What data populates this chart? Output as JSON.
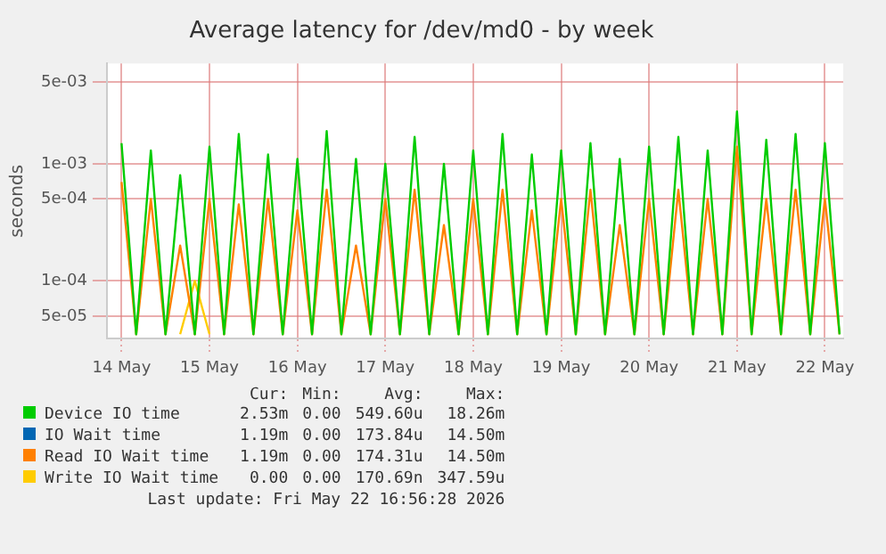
{
  "chart_data": {
    "type": "line",
    "title": "Average latency for /dev/md0 - by week",
    "ylabel": "seconds",
    "x": [
      "2026-05-14T00:00",
      "2026-05-14T04:00",
      "2026-05-14T08:00",
      "2026-05-14T12:00",
      "2026-05-14T16:00",
      "2026-05-14T20:00",
      "2026-05-15T00:00",
      "2026-05-15T04:00",
      "2026-05-15T08:00",
      "2026-05-15T12:00",
      "2026-05-15T16:00",
      "2026-05-15T20:00",
      "2026-05-16T00:00",
      "2026-05-16T04:00",
      "2026-05-16T08:00",
      "2026-05-16T12:00",
      "2026-05-16T16:00",
      "2026-05-16T20:00",
      "2026-05-17T00:00",
      "2026-05-17T04:00",
      "2026-05-17T08:00",
      "2026-05-17T12:00",
      "2026-05-17T16:00",
      "2026-05-17T20:00",
      "2026-05-18T00:00",
      "2026-05-18T04:00",
      "2026-05-18T08:00",
      "2026-05-18T12:00",
      "2026-05-18T16:00",
      "2026-05-18T20:00",
      "2026-05-19T00:00",
      "2026-05-19T04:00",
      "2026-05-19T08:00",
      "2026-05-19T12:00",
      "2026-05-19T16:00",
      "2026-05-19T20:00",
      "2026-05-20T00:00",
      "2026-05-20T04:00",
      "2026-05-20T08:00",
      "2026-05-20T12:00",
      "2026-05-20T16:00",
      "2026-05-20T20:00",
      "2026-05-21T00:00",
      "2026-05-21T04:00",
      "2026-05-21T08:00",
      "2026-05-21T12:00",
      "2026-05-21T16:00",
      "2026-05-21T20:00",
      "2026-05-22T00:00",
      "2026-05-22T04:00"
    ],
    "series": [
      {
        "name": "Device IO time",
        "color": "#00cc00",
        "values": [
          0.0015,
          3.5e-05,
          0.0013,
          3.5e-05,
          0.0008,
          3.5e-05,
          0.0014,
          3.5e-05,
          0.0018,
          3.5e-05,
          0.0012,
          3.5e-05,
          0.0011,
          3.5e-05,
          0.0019,
          3.5e-05,
          0.0011,
          3.5e-05,
          0.001,
          3.5e-05,
          0.0017,
          3.5e-05,
          0.001,
          3.5e-05,
          0.0013,
          3.5e-05,
          0.0018,
          3.5e-05,
          0.0012,
          3.5e-05,
          0.0013,
          3.5e-05,
          0.0015,
          3.5e-05,
          0.0011,
          3.5e-05,
          0.0014,
          3.5e-05,
          0.0017,
          3.5e-05,
          0.0013,
          3.5e-05,
          0.0028,
          3.5e-05,
          0.0016,
          3.5e-05,
          0.0018,
          3.5e-05,
          0.0015,
          3.5e-05
        ]
      },
      {
        "name": "IO Wait time",
        "color": "#0066b3",
        "values": [
          null,
          null,
          null,
          null,
          null,
          null,
          null,
          null,
          null,
          null,
          null,
          null,
          null,
          null,
          null,
          null,
          null,
          null,
          null,
          null,
          null,
          null,
          null,
          null,
          null,
          null,
          null,
          null,
          null,
          null,
          null,
          null,
          null,
          null,
          null,
          null,
          null,
          null,
          null,
          null,
          null,
          null,
          null,
          null,
          null,
          null,
          null,
          null,
          null,
          null
        ]
      },
      {
        "name": "Read IO Wait time",
        "color": "#ff8000",
        "values": [
          0.0007,
          3.5e-05,
          0.0005,
          3.5e-05,
          0.0002,
          3.5e-05,
          0.0005,
          3.5e-05,
          0.00045,
          3.5e-05,
          0.0005,
          3.5e-05,
          0.0004,
          3.5e-05,
          0.0006,
          3.5e-05,
          0.0002,
          3.5e-05,
          0.0005,
          3.5e-05,
          0.0006,
          3.5e-05,
          0.0003,
          3.5e-05,
          0.0005,
          3.5e-05,
          0.0006,
          3.5e-05,
          0.0004,
          3.5e-05,
          0.0005,
          3.5e-05,
          0.0006,
          3.5e-05,
          0.0003,
          3.5e-05,
          0.0005,
          3.5e-05,
          0.0006,
          3.5e-05,
          0.0005,
          3.5e-05,
          0.0014,
          3.5e-05,
          0.0005,
          3.5e-05,
          0.0006,
          3.5e-05,
          0.0005,
          3.5e-05
        ]
      },
      {
        "name": "Write IO Wait time",
        "color": "#ffcc00",
        "values": [
          null,
          null,
          null,
          null,
          3.5e-05,
          0.0001,
          3.5e-05,
          null,
          null,
          null,
          null,
          null,
          null,
          null,
          null,
          null,
          null,
          null,
          null,
          null,
          null,
          null,
          null,
          null,
          null,
          null,
          null,
          null,
          null,
          null,
          null,
          null,
          null,
          null,
          null,
          null,
          null,
          null,
          null,
          null,
          null,
          null,
          null,
          null,
          null,
          null,
          null,
          null,
          null,
          null
        ]
      }
    ],
    "xlim": [
      "2026-05-13T20:00",
      "2026-05-22T05:00"
    ],
    "xticks": [
      {
        "value": "2026-05-14",
        "label": "14 May"
      },
      {
        "value": "2026-05-15",
        "label": "15 May"
      },
      {
        "value": "2026-05-16",
        "label": "16 May"
      },
      {
        "value": "2026-05-17",
        "label": "17 May"
      },
      {
        "value": "2026-05-18",
        "label": "18 May"
      },
      {
        "value": "2026-05-19",
        "label": "19 May"
      },
      {
        "value": "2026-05-20",
        "label": "20 May"
      },
      {
        "value": "2026-05-21",
        "label": "21 May"
      },
      {
        "value": "2026-05-22",
        "label": "22 May"
      }
    ],
    "ylim": [
      3.2e-05,
      0.0072
    ],
    "log": true,
    "yticks": [
      {
        "value": 5e-05,
        "label": "5e-05"
      },
      {
        "value": 0.0001,
        "label": "1e-04"
      },
      {
        "value": 0.0005,
        "label": "5e-04"
      },
      {
        "value": 0.001,
        "label": "1e-03"
      },
      {
        "value": 0.005,
        "label": "5e-03"
      }
    ],
    "grid": true,
    "legend": "bottom",
    "marker": "none",
    "line_style": "solid",
    "annotations": [
      "Cur:",
      "Min:",
      "Avg:",
      "Max:",
      "2.53m",
      "0.00",
      "549.60u",
      "18.26m",
      "1.19m",
      "0.00",
      "173.84u",
      "14.50m",
      "1.19m",
      "0.00",
      "174.31u",
      "14.50m",
      "0.00",
      "0.00",
      "170.69n",
      "347.59u",
      "Last update: Fri May 22 16:56:28 2026"
    ]
  }
}
